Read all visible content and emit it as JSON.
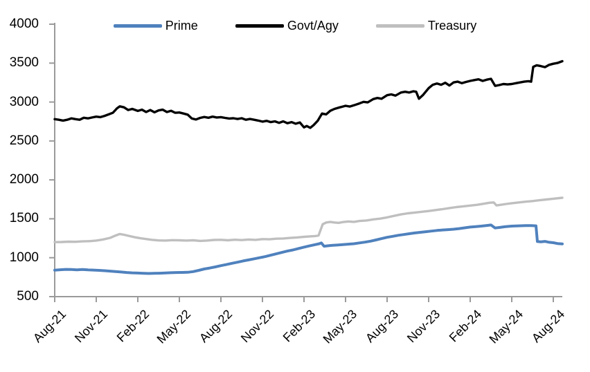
{
  "chart_data": {
    "type": "line",
    "title": "",
    "xlabel": "",
    "ylabel": "",
    "grid": false,
    "legend_position": "top",
    "background_color": "#ffffff",
    "axis_color": "#9a9a9a",
    "x_axis": {
      "labels": [
        "Aug-21",
        "Nov-21",
        "Feb-22",
        "May-22",
        "Aug-22",
        "Nov-22",
        "Feb-23",
        "May-23",
        "Aug-23",
        "Nov-23",
        "Feb-24",
        "May-24",
        "Aug-24"
      ],
      "months_per_tick": 3,
      "month_range": [
        0,
        36.65
      ]
    },
    "y_axis": {
      "ticks": [
        4000,
        3500,
        3000,
        2500,
        2000,
        1500,
        1000,
        500
      ],
      "min": 500,
      "max": 4000
    },
    "series": [
      {
        "name": "Prime",
        "color": "#4f81bd",
        "points": [
          [
            0,
            840
          ],
          [
            0.4,
            846
          ],
          [
            0.8,
            850
          ],
          [
            1.2,
            848
          ],
          [
            1.6,
            845
          ],
          [
            2,
            848
          ],
          [
            2.4,
            844
          ],
          [
            2.8,
            841
          ],
          [
            3.2,
            838
          ],
          [
            3.6,
            833
          ],
          [
            4,
            828
          ],
          [
            4.4,
            822
          ],
          [
            4.8,
            816
          ],
          [
            5.2,
            810
          ],
          [
            5.6,
            806
          ],
          [
            6,
            803
          ],
          [
            6.4,
            800
          ],
          [
            6.8,
            798
          ],
          [
            7.2,
            799
          ],
          [
            7.6,
            801
          ],
          [
            8,
            804
          ],
          [
            8.4,
            807
          ],
          [
            8.8,
            810
          ],
          [
            9.2,
            811
          ],
          [
            9.6,
            813
          ],
          [
            10,
            822
          ],
          [
            10.4,
            838
          ],
          [
            10.8,
            855
          ],
          [
            11.2,
            868
          ],
          [
            11.6,
            882
          ],
          [
            12,
            898
          ],
          [
            12.4,
            912
          ],
          [
            12.8,
            928
          ],
          [
            13.2,
            942
          ],
          [
            13.6,
            958
          ],
          [
            14,
            972
          ],
          [
            14.4,
            986
          ],
          [
            14.8,
            1000
          ],
          [
            15.2,
            1014
          ],
          [
            15.6,
            1032
          ],
          [
            16,
            1050
          ],
          [
            16.4,
            1068
          ],
          [
            16.8,
            1085
          ],
          [
            17.2,
            1100
          ],
          [
            17.6,
            1118
          ],
          [
            18,
            1136
          ],
          [
            18.4,
            1152
          ],
          [
            18.8,
            1168
          ],
          [
            19.1,
            1180
          ],
          [
            19.25,
            1190
          ],
          [
            19.45,
            1148
          ],
          [
            19.7,
            1153
          ],
          [
            20,
            1158
          ],
          [
            20.4,
            1163
          ],
          [
            20.8,
            1168
          ],
          [
            21.2,
            1174
          ],
          [
            21.6,
            1180
          ],
          [
            22,
            1190
          ],
          [
            22.4,
            1200
          ],
          [
            22.8,
            1212
          ],
          [
            23.2,
            1228
          ],
          [
            23.6,
            1245
          ],
          [
            24,
            1262
          ],
          [
            24.4,
            1275
          ],
          [
            24.8,
            1288
          ],
          [
            25.2,
            1298
          ],
          [
            25.6,
            1308
          ],
          [
            26,
            1318
          ],
          [
            26.4,
            1326
          ],
          [
            26.8,
            1334
          ],
          [
            27.2,
            1342
          ],
          [
            27.6,
            1350
          ],
          [
            28,
            1356
          ],
          [
            28.4,
            1361
          ],
          [
            28.8,
            1366
          ],
          [
            29.2,
            1374
          ],
          [
            29.6,
            1384
          ],
          [
            30,
            1394
          ],
          [
            30.4,
            1400
          ],
          [
            30.8,
            1406
          ],
          [
            31.2,
            1414
          ],
          [
            31.5,
            1420
          ],
          [
            31.8,
            1382
          ],
          [
            32.1,
            1388
          ],
          [
            32.5,
            1398
          ],
          [
            33,
            1406
          ],
          [
            33.5,
            1410
          ],
          [
            34,
            1413
          ],
          [
            34.4,
            1412
          ],
          [
            34.75,
            1410
          ],
          [
            34.85,
            1208
          ],
          [
            35.1,
            1204
          ],
          [
            35.4,
            1210
          ],
          [
            35.7,
            1198
          ],
          [
            36,
            1193
          ],
          [
            36.3,
            1182
          ],
          [
            36.65,
            1178
          ]
        ]
      },
      {
        "name": "Govt/Agy",
        "color": "#000000",
        "points": [
          [
            0,
            2780
          ],
          [
            0.3,
            2772
          ],
          [
            0.6,
            2762
          ],
          [
            0.9,
            2772
          ],
          [
            1.2,
            2790
          ],
          [
            1.5,
            2780
          ],
          [
            1.8,
            2772
          ],
          [
            2.1,
            2798
          ],
          [
            2.4,
            2790
          ],
          [
            2.7,
            2802
          ],
          [
            3,
            2812
          ],
          [
            3.3,
            2806
          ],
          [
            3.6,
            2822
          ],
          [
            3.9,
            2842
          ],
          [
            4.2,
            2862
          ],
          [
            4.5,
            2920
          ],
          [
            4.7,
            2945
          ],
          [
            5,
            2932
          ],
          [
            5.3,
            2898
          ],
          [
            5.6,
            2912
          ],
          [
            6,
            2886
          ],
          [
            6.3,
            2902
          ],
          [
            6.6,
            2872
          ],
          [
            6.9,
            2898
          ],
          [
            7.2,
            2868
          ],
          [
            7.5,
            2892
          ],
          [
            7.8,
            2902
          ],
          [
            8.1,
            2872
          ],
          [
            8.4,
            2888
          ],
          [
            8.7,
            2862
          ],
          [
            9,
            2866
          ],
          [
            9.3,
            2852
          ],
          [
            9.6,
            2838
          ],
          [
            9.9,
            2788
          ],
          [
            10.2,
            2776
          ],
          [
            10.5,
            2796
          ],
          [
            10.8,
            2808
          ],
          [
            11.1,
            2798
          ],
          [
            11.4,
            2812
          ],
          [
            11.7,
            2802
          ],
          [
            12,
            2806
          ],
          [
            12.3,
            2796
          ],
          [
            12.6,
            2788
          ],
          [
            12.9,
            2792
          ],
          [
            13.2,
            2782
          ],
          [
            13.5,
            2792
          ],
          [
            13.8,
            2772
          ],
          [
            14.1,
            2782
          ],
          [
            14.4,
            2772
          ],
          [
            14.7,
            2762
          ],
          [
            15,
            2748
          ],
          [
            15.3,
            2758
          ],
          [
            15.6,
            2742
          ],
          [
            15.9,
            2752
          ],
          [
            16.2,
            2732
          ],
          [
            16.5,
            2752
          ],
          [
            16.8,
            2728
          ],
          [
            17.1,
            2742
          ],
          [
            17.4,
            2722
          ],
          [
            17.7,
            2738
          ],
          [
            18,
            2675
          ],
          [
            18.2,
            2692
          ],
          [
            18.45,
            2668
          ],
          [
            18.7,
            2705
          ],
          [
            19,
            2762
          ],
          [
            19.3,
            2852
          ],
          [
            19.6,
            2842
          ],
          [
            19.9,
            2888
          ],
          [
            20.2,
            2912
          ],
          [
            20.5,
            2928
          ],
          [
            20.8,
            2942
          ],
          [
            21,
            2952
          ],
          [
            21.3,
            2942
          ],
          [
            21.6,
            2958
          ],
          [
            22,
            2982
          ],
          [
            22.3,
            3002
          ],
          [
            22.6,
            2995
          ],
          [
            23,
            3038
          ],
          [
            23.3,
            3052
          ],
          [
            23.6,
            3042
          ],
          [
            24,
            3088
          ],
          [
            24.3,
            3098
          ],
          [
            24.6,
            3082
          ],
          [
            25,
            3122
          ],
          [
            25.3,
            3132
          ],
          [
            25.6,
            3122
          ],
          [
            25.9,
            3138
          ],
          [
            26.1,
            3132
          ],
          [
            26.3,
            3042
          ],
          [
            26.6,
            3092
          ],
          [
            27,
            3178
          ],
          [
            27.3,
            3222
          ],
          [
            27.6,
            3238
          ],
          [
            27.9,
            3222
          ],
          [
            28.2,
            3248
          ],
          [
            28.5,
            3212
          ],
          [
            28.8,
            3252
          ],
          [
            29.1,
            3262
          ],
          [
            29.4,
            3242
          ],
          [
            29.7,
            3258
          ],
          [
            30,
            3272
          ],
          [
            30.3,
            3282
          ],
          [
            30.6,
            3292
          ],
          [
            30.9,
            3272
          ],
          [
            31.2,
            3288
          ],
          [
            31.5,
            3298
          ],
          [
            31.8,
            3208
          ],
          [
            32.1,
            3218
          ],
          [
            32.4,
            3232
          ],
          [
            32.7,
            3226
          ],
          [
            33,
            3232
          ],
          [
            33.3,
            3242
          ],
          [
            33.6,
            3252
          ],
          [
            33.9,
            3262
          ],
          [
            34.2,
            3268
          ],
          [
            34.4,
            3262
          ],
          [
            34.55,
            3452
          ],
          [
            34.8,
            3472
          ],
          [
            35.1,
            3462
          ],
          [
            35.4,
            3448
          ],
          [
            35.7,
            3478
          ],
          [
            36,
            3492
          ],
          [
            36.3,
            3502
          ],
          [
            36.65,
            3525
          ]
        ]
      },
      {
        "name": "Treasury",
        "color": "#bfbfbf",
        "points": [
          [
            0,
            1200
          ],
          [
            0.5,
            1202
          ],
          [
            1,
            1206
          ],
          [
            1.5,
            1204
          ],
          [
            2,
            1210
          ],
          [
            2.5,
            1212
          ],
          [
            3,
            1220
          ],
          [
            3.5,
            1235
          ],
          [
            4,
            1255
          ],
          [
            4.4,
            1285
          ],
          [
            4.7,
            1305
          ],
          [
            5,
            1295
          ],
          [
            5.4,
            1278
          ],
          [
            5.8,
            1262
          ],
          [
            6.2,
            1250
          ],
          [
            6.6,
            1240
          ],
          [
            7,
            1230
          ],
          [
            7.5,
            1222
          ],
          [
            8,
            1220
          ],
          [
            8.5,
            1226
          ],
          [
            9,
            1224
          ],
          [
            9.5,
            1220
          ],
          [
            10,
            1224
          ],
          [
            10.5,
            1216
          ],
          [
            11,
            1220
          ],
          [
            11.5,
            1228
          ],
          [
            12,
            1230
          ],
          [
            12.5,
            1224
          ],
          [
            13,
            1231
          ],
          [
            13.5,
            1227
          ],
          [
            14,
            1234
          ],
          [
            14.5,
            1229
          ],
          [
            15,
            1239
          ],
          [
            15.5,
            1236
          ],
          [
            16,
            1244
          ],
          [
            16.5,
            1247
          ],
          [
            17,
            1254
          ],
          [
            17.5,
            1260
          ],
          [
            18,
            1268
          ],
          [
            18.4,
            1274
          ],
          [
            18.8,
            1278
          ],
          [
            19.05,
            1285
          ],
          [
            19.35,
            1430
          ],
          [
            19.6,
            1452
          ],
          [
            19.9,
            1460
          ],
          [
            20.2,
            1452
          ],
          [
            20.5,
            1448
          ],
          [
            20.8,
            1458
          ],
          [
            21.2,
            1466
          ],
          [
            21.6,
            1460
          ],
          [
            22,
            1472
          ],
          [
            22.5,
            1478
          ],
          [
            23,
            1492
          ],
          [
            23.5,
            1502
          ],
          [
            24,
            1518
          ],
          [
            24.5,
            1538
          ],
          [
            25,
            1556
          ],
          [
            25.5,
            1570
          ],
          [
            26,
            1580
          ],
          [
            26.5,
            1590
          ],
          [
            27,
            1600
          ],
          [
            27.5,
            1612
          ],
          [
            28,
            1624
          ],
          [
            28.5,
            1638
          ],
          [
            29,
            1650
          ],
          [
            29.5,
            1660
          ],
          [
            30,
            1670
          ],
          [
            30.5,
            1680
          ],
          [
            31,
            1694
          ],
          [
            31.4,
            1706
          ],
          [
            31.7,
            1710
          ],
          [
            31.9,
            1672
          ],
          [
            32.2,
            1680
          ],
          [
            32.6,
            1690
          ],
          [
            33,
            1700
          ],
          [
            33.5,
            1710
          ],
          [
            34,
            1720
          ],
          [
            34.5,
            1728
          ],
          [
            35,
            1738
          ],
          [
            35.5,
            1748
          ],
          [
            36,
            1758
          ],
          [
            36.65,
            1770
          ]
        ]
      }
    ]
  }
}
